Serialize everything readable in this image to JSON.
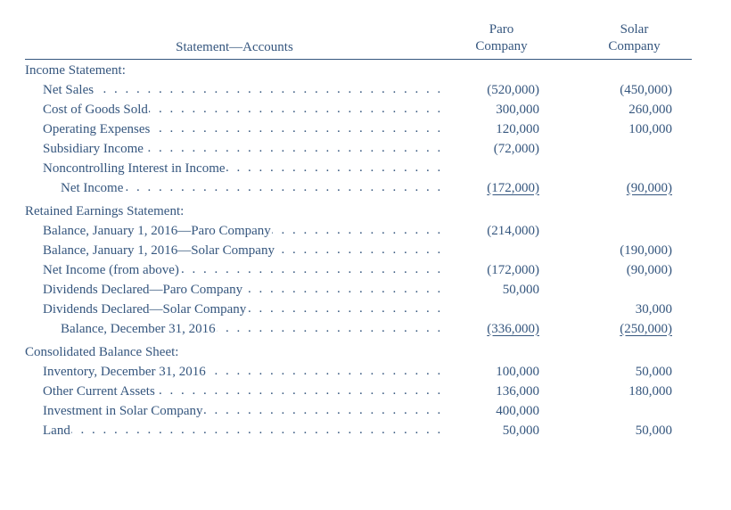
{
  "header": {
    "accounts_label": "Statement—Accounts",
    "col1_line1": "Paro",
    "col1_line2": "Company",
    "col2_line1": "Solar",
    "col2_line2": "Company"
  },
  "sections": {
    "income_statement": {
      "title": "Income Statement:",
      "rows": [
        {
          "label": "Net Sales",
          "paro": "(520,000)",
          "solar": "(450,000)"
        },
        {
          "label": "Cost of Goods Sold",
          "paro": "300,000",
          "solar": "260,000"
        },
        {
          "label": "Operating Expenses",
          "paro": "120,000",
          "solar": "100,000"
        },
        {
          "label": "Subsidiary Income",
          "paro": "(72,000)",
          "solar": ""
        },
        {
          "label": "Noncontrolling Interest in Income",
          "paro": "",
          "solar": ""
        }
      ],
      "total": {
        "label": "Net Income",
        "paro": "(172,000)",
        "solar": "(90,000)"
      }
    },
    "retained_earnings": {
      "title": "Retained Earnings Statement:",
      "rows": [
        {
          "label": "Balance, January 1, 2016—Paro Company",
          "paro": "(214,000)",
          "solar": ""
        },
        {
          "label": "Balance, January 1, 2016—Solar Company",
          "paro": "",
          "solar": "(190,000)"
        },
        {
          "label": "Net Income (from above)",
          "paro": "(172,000)",
          "solar": "(90,000)"
        },
        {
          "label": "Dividends Declared—Paro Company",
          "paro": "50,000",
          "solar": ""
        },
        {
          "label": "Dividends Declared—Solar Company",
          "paro": "",
          "solar": "30,000"
        }
      ],
      "total": {
        "label": "Balance, December 31, 2016",
        "paro": "(336,000)",
        "solar": "(250,000)"
      }
    },
    "balance_sheet": {
      "title": "Consolidated Balance Sheet:",
      "rows": [
        {
          "label": "Inventory, December 31, 2016",
          "paro": "100,000",
          "solar": "50,000"
        },
        {
          "label": "Other Current Assets",
          "paro": "136,000",
          "solar": "180,000"
        },
        {
          "label": "Investment in Solar Company",
          "paro": "400,000",
          "solar": ""
        },
        {
          "label": "Land",
          "paro": "50,000",
          "solar": "50,000"
        }
      ]
    }
  },
  "style": {
    "dot_leader": ". . . . . . . . . . . . . . . . . . . . . . . . . . . . . . . . . . . . . . . . . . . . . . . . . . . . . . . . . . . ."
  }
}
